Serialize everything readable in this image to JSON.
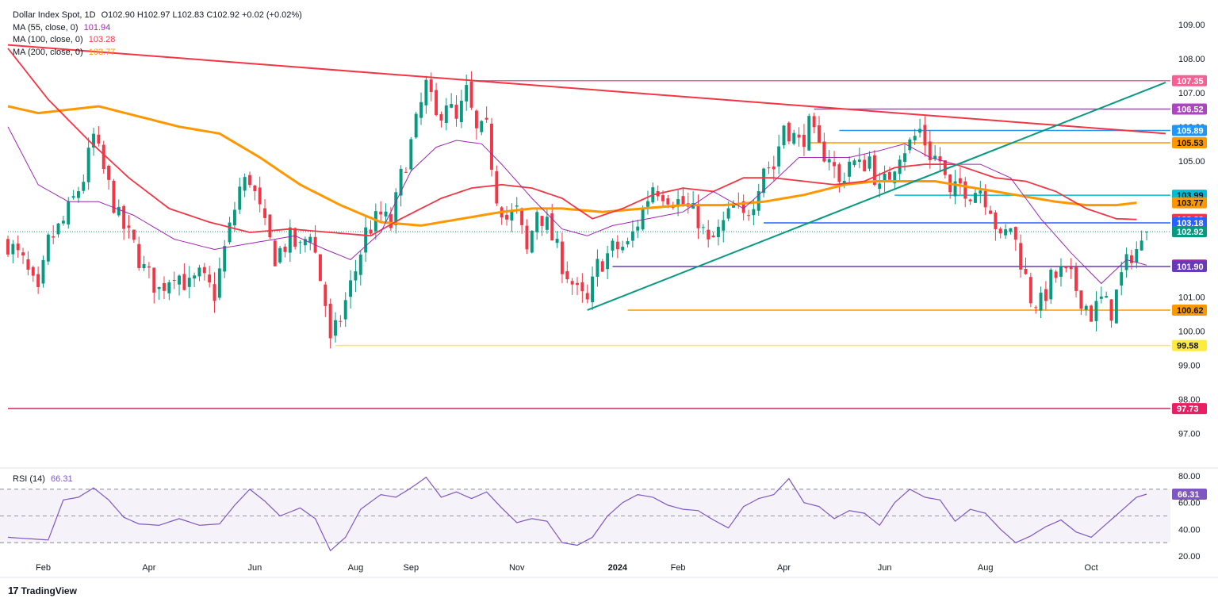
{
  "header": {
    "title": "Dollar Index Spot, 1D",
    "ohlc": "O102.90  H102.97  L102.83  C102.92  +0.02 (+0.02%)",
    "ma55": {
      "label": "MA (55, close, 0)",
      "value": "101.94",
      "color": "#9c27b0"
    },
    "ma100": {
      "label": "MA (100, close, 0)",
      "value": "103.28",
      "color": "#f23645"
    },
    "ma200": {
      "label": "MA (200, close, 0)",
      "value": "103.77",
      "color": "#ff9800"
    }
  },
  "rsi": {
    "label": "RSI (14)",
    "value": "66.31",
    "color": "#7e57c2"
  },
  "brand": {
    "logo": "17",
    "name": "TradingView"
  },
  "chart_data": {
    "type": "candlestick",
    "y_range": [
      96.5,
      109.3
    ],
    "y_ticks": [
      "109.00",
      "108.00",
      "107.00",
      "106.00",
      "105.00",
      "104.00",
      "103.00",
      "102.00",
      "101.00",
      "100.00",
      "99.00",
      "98.00",
      "97.00"
    ],
    "x_ticks": [
      "Feb",
      "Apr",
      "Jun",
      "Aug",
      "Sep",
      "Nov",
      "2024",
      "Feb",
      "Apr",
      "Jun",
      "Aug",
      "Oct"
    ],
    "rsi_ticks": [
      "80.00",
      "60.00",
      "40.00",
      "20.00"
    ],
    "rsi_range": [
      20,
      80
    ],
    "rsi_bands": [
      70,
      50,
      30
    ],
    "price_path": [
      [
        0,
        102.6
      ],
      [
        3,
        102.0
      ],
      [
        6,
        101.0
      ],
      [
        8,
        102.6
      ],
      [
        11,
        103.2
      ],
      [
        15,
        104.5
      ],
      [
        17,
        105.7
      ],
      [
        19,
        104.7
      ],
      [
        22,
        103.3
      ],
      [
        25,
        102.5
      ],
      [
        27,
        101.8
      ],
      [
        30,
        101.2
      ],
      [
        33,
        101.8
      ],
      [
        36,
        101.3
      ],
      [
        38,
        101.6
      ],
      [
        41,
        101.1
      ],
      [
        43,
        102.4
      ],
      [
        46,
        104.2
      ],
      [
        48,
        104.5
      ],
      [
        51,
        103.0
      ],
      [
        53,
        102.2
      ],
      [
        56,
        102.7
      ],
      [
        58,
        102.4
      ],
      [
        60,
        103.0
      ],
      [
        63,
        100.8
      ],
      [
        64,
        99.6
      ],
      [
        66,
        100.4
      ],
      [
        69,
        101.8
      ],
      [
        71,
        102.9
      ],
      [
        74,
        103.4
      ],
      [
        76,
        103.1
      ],
      [
        78,
        104.5
      ],
      [
        80,
        105.5
      ],
      [
        83,
        107.2
      ],
      [
        85,
        106.2
      ],
      [
        87,
        106.8
      ],
      [
        89,
        106.1
      ],
      [
        91,
        107.0
      ],
      [
        93,
        105.8
      ],
      [
        95,
        105.9
      ],
      [
        97,
        104.0
      ],
      [
        99,
        103.3
      ],
      [
        101,
        103.5
      ],
      [
        103,
        102.3
      ],
      [
        105,
        103.6
      ],
      [
        107,
        103.1
      ],
      [
        110,
        102.0
      ],
      [
        113,
        101.1
      ],
      [
        115,
        100.8
      ],
      [
        117,
        101.9
      ],
      [
        120,
        102.4
      ],
      [
        123,
        102.5
      ],
      [
        125,
        103.2
      ],
      [
        128,
        104.3
      ],
      [
        131,
        104.0
      ],
      [
        134,
        103.7
      ],
      [
        137,
        103.3
      ],
      [
        139,
        102.5
      ],
      [
        141,
        102.9
      ],
      [
        144,
        103.6
      ],
      [
        146,
        103.3
      ],
      [
        148,
        103.9
      ],
      [
        150,
        104.9
      ],
      [
        152,
        104.8
      ],
      [
        154,
        106.1
      ],
      [
        157,
        105.5
      ],
      [
        159,
        106.0
      ],
      [
        161,
        105.3
      ],
      [
        163,
        105.2
      ],
      [
        165,
        104.3
      ],
      [
        167,
        105.0
      ],
      [
        169,
        104.8
      ],
      [
        171,
        105.1
      ],
      [
        173,
        104.1
      ],
      [
        175,
        104.6
      ],
      [
        177,
        105.3
      ],
      [
        179,
        105.5
      ],
      [
        181,
        105.9
      ],
      [
        183,
        105.2
      ],
      [
        185,
        105.0
      ],
      [
        187,
        103.9
      ],
      [
        189,
        104.3
      ],
      [
        191,
        104.1
      ],
      [
        193,
        104.2
      ],
      [
        195,
        103.7
      ],
      [
        197,
        102.6
      ],
      [
        199,
        103.1
      ],
      [
        201,
        102.1
      ],
      [
        203,
        101.0
      ],
      [
        205,
        100.8
      ],
      [
        207,
        101.5
      ],
      [
        209,
        101.7
      ],
      [
        211,
        101.5
      ],
      [
        213,
        101.0
      ],
      [
        215,
        100.5
      ],
      [
        217,
        100.9
      ],
      [
        219,
        100.6
      ],
      [
        221,
        101.6
      ],
      [
        223,
        102.3
      ],
      [
        225,
        102.5
      ],
      [
        226,
        102.9
      ]
    ],
    "ma55_path": [
      [
        0,
        106.0
      ],
      [
        6,
        104.3
      ],
      [
        12,
        103.8
      ],
      [
        18,
        103.8
      ],
      [
        25,
        103.4
      ],
      [
        33,
        102.7
      ],
      [
        41,
        102.4
      ],
      [
        49,
        102.6
      ],
      [
        57,
        102.8
      ],
      [
        63,
        102.4
      ],
      [
        68,
        102.1
      ],
      [
        74,
        102.9
      ],
      [
        80,
        104.7
      ],
      [
        85,
        105.4
      ],
      [
        89,
        105.6
      ],
      [
        94,
        105.5
      ],
      [
        98,
        104.9
      ],
      [
        104,
        103.9
      ],
      [
        110,
        103.0
      ],
      [
        115,
        102.8
      ],
      [
        120,
        103.1
      ],
      [
        127,
        103.3
      ],
      [
        134,
        103.5
      ],
      [
        140,
        104.1
      ],
      [
        146,
        103.6
      ],
      [
        152,
        104.4
      ],
      [
        157,
        105.1
      ],
      [
        162,
        105.1
      ],
      [
        167,
        105.1
      ],
      [
        173,
        105.3
      ],
      [
        178,
        105.5
      ],
      [
        183,
        105.1
      ],
      [
        188,
        104.9
      ],
      [
        193,
        104.9
      ],
      [
        199,
        104.5
      ],
      [
        205,
        103.3
      ],
      [
        211,
        102.3
      ],
      [
        217,
        101.4
      ],
      [
        222,
        102.1
      ],
      [
        226,
        101.94
      ]
    ],
    "ma100_path": [
      [
        0,
        108.3
      ],
      [
        8,
        106.8
      ],
      [
        16,
        105.6
      ],
      [
        24,
        104.5
      ],
      [
        32,
        103.6
      ],
      [
        40,
        103.2
      ],
      [
        48,
        102.9
      ],
      [
        56,
        103.0
      ],
      [
        64,
        102.9
      ],
      [
        72,
        102.8
      ],
      [
        78,
        103.3
      ],
      [
        86,
        103.9
      ],
      [
        92,
        104.2
      ],
      [
        98,
        104.3
      ],
      [
        104,
        104.2
      ],
      [
        110,
        103.9
      ],
      [
        116,
        103.3
      ],
      [
        122,
        103.6
      ],
      [
        128,
        104.0
      ],
      [
        134,
        104.2
      ],
      [
        140,
        104.1
      ],
      [
        146,
        104.5
      ],
      [
        152,
        104.5
      ],
      [
        158,
        104.4
      ],
      [
        164,
        104.3
      ],
      [
        170,
        104.4
      ],
      [
        176,
        104.8
      ],
      [
        182,
        104.9
      ],
      [
        188,
        104.9
      ],
      [
        196,
        104.5
      ],
      [
        202,
        104.4
      ],
      [
        208,
        104.1
      ],
      [
        214,
        103.6
      ],
      [
        220,
        103.3
      ],
      [
        224,
        103.28
      ]
    ],
    "ma200_path": [
      [
        0,
        106.6
      ],
      [
        6,
        106.4
      ],
      [
        12,
        106.5
      ],
      [
        18,
        106.6
      ],
      [
        26,
        106.3
      ],
      [
        34,
        106.0
      ],
      [
        42,
        105.8
      ],
      [
        50,
        105.1
      ],
      [
        58,
        104.3
      ],
      [
        66,
        103.7
      ],
      [
        74,
        103.2
      ],
      [
        82,
        103.1
      ],
      [
        90,
        103.3
      ],
      [
        98,
        103.5
      ],
      [
        104,
        103.6
      ],
      [
        110,
        103.6
      ],
      [
        118,
        103.5
      ],
      [
        126,
        103.6
      ],
      [
        134,
        103.7
      ],
      [
        142,
        103.7
      ],
      [
        150,
        103.8
      ],
      [
        158,
        104.0
      ],
      [
        166,
        104.3
      ],
      [
        172,
        104.4
      ],
      [
        178,
        104.4
      ],
      [
        184,
        104.4
      ],
      [
        192,
        104.2
      ],
      [
        200,
        104.0
      ],
      [
        208,
        103.8
      ],
      [
        214,
        103.7
      ],
      [
        220,
        103.7
      ],
      [
        224,
        103.77
      ]
    ],
    "rsi_path": [
      [
        0,
        34
      ],
      [
        4,
        33
      ],
      [
        8,
        32
      ],
      [
        11,
        62
      ],
      [
        14,
        64
      ],
      [
        17,
        71
      ],
      [
        20,
        62
      ],
      [
        23,
        49
      ],
      [
        26,
        44
      ],
      [
        30,
        43
      ],
      [
        34,
        48
      ],
      [
        38,
        43
      ],
      [
        42,
        44
      ],
      [
        45,
        58
      ],
      [
        48,
        70
      ],
      [
        51,
        61
      ],
      [
        54,
        50
      ],
      [
        58,
        56
      ],
      [
        61,
        48
      ],
      [
        64,
        24
      ],
      [
        67,
        34
      ],
      [
        70,
        55
      ],
      [
        74,
        66
      ],
      [
        77,
        64
      ],
      [
        80,
        71
      ],
      [
        83,
        79
      ],
      [
        86,
        64
      ],
      [
        89,
        68
      ],
      [
        92,
        63
      ],
      [
        95,
        68
      ],
      [
        98,
        56
      ],
      [
        101,
        45
      ],
      [
        104,
        48
      ],
      [
        107,
        46
      ],
      [
        110,
        30
      ],
      [
        113,
        28
      ],
      [
        116,
        34
      ],
      [
        119,
        50
      ],
      [
        122,
        60
      ],
      [
        125,
        66
      ],
      [
        128,
        64
      ],
      [
        131,
        58
      ],
      [
        134,
        55
      ],
      [
        137,
        54
      ],
      [
        140,
        47
      ],
      [
        143,
        41
      ],
      [
        146,
        57
      ],
      [
        149,
        63
      ],
      [
        152,
        66
      ],
      [
        155,
        78
      ],
      [
        158,
        60
      ],
      [
        161,
        57
      ],
      [
        164,
        48
      ],
      [
        167,
        54
      ],
      [
        170,
        52
      ],
      [
        173,
        43
      ],
      [
        176,
        60
      ],
      [
        179,
        70
      ],
      [
        182,
        64
      ],
      [
        185,
        62
      ],
      [
        188,
        46
      ],
      [
        191,
        55
      ],
      [
        194,
        52
      ],
      [
        197,
        40
      ],
      [
        200,
        30
      ],
      [
        203,
        35
      ],
      [
        206,
        42
      ],
      [
        209,
        47
      ],
      [
        212,
        38
      ],
      [
        215,
        34
      ],
      [
        218,
        44
      ],
      [
        221,
        54
      ],
      [
        224,
        64
      ],
      [
        226,
        66.31
      ]
    ],
    "trendlines": [
      {
        "name": "red-down-trend",
        "color": "#f23645",
        "from": [
          0,
          108.4
        ],
        "to": [
          226,
          105.8
        ]
      },
      {
        "name": "green-up-trend",
        "color": "#089981",
        "from": [
          115,
          100.62
        ],
        "to": [
          226,
          107.3
        ]
      }
    ],
    "levels": [
      {
        "value": 107.35,
        "label": "107.35",
        "color": "#f06292",
        "from_i": 92
      },
      {
        "value": 106.52,
        "label": "106.52",
        "color": "#ab47bc",
        "from_i": 160
      },
      {
        "value": 105.89,
        "label": "105.89",
        "color": "#2196f3",
        "from_i": 165
      },
      {
        "value": 105.53,
        "label": "105.53",
        "color": "#ff9800",
        "from_i": 159
      },
      {
        "value": 103.99,
        "label": "103.99",
        "color": "#00bcd4",
        "from_i": 176
      },
      {
        "value": 103.18,
        "label": "103.18",
        "color": "#2962ff",
        "from_i": 150
      },
      {
        "value": 101.9,
        "label": "101.90",
        "color": "#673ab7",
        "from_i": 120
      },
      {
        "value": 100.62,
        "label": "100.62",
        "color": "#ff9800",
        "from_i": 123
      },
      {
        "value": 99.58,
        "label": "99.58",
        "color": "#ffeb3b",
        "from_i": 65
      },
      {
        "value": 97.73,
        "label": "97.73",
        "color": "#e91e63",
        "from_i": 0
      }
    ],
    "price_tags": [
      {
        "value": 107.35,
        "label": "107.35",
        "bg": "#f06292",
        "fg": "#ffffff"
      },
      {
        "value": 106.52,
        "label": "106.52",
        "bg": "#ab47bc",
        "fg": "#ffffff"
      },
      {
        "value": 105.89,
        "label": "105.89",
        "bg": "#2196f3",
        "fg": "#ffffff"
      },
      {
        "value": 105.53,
        "label": "105.53",
        "bg": "#ff9800",
        "fg": "#131722"
      },
      {
        "value": 103.99,
        "label": "103.99",
        "bg": "#00bcd4",
        "fg": "#131722"
      },
      {
        "value": 103.77,
        "label": "103.77",
        "bg": "#ff9800",
        "fg": "#131722"
      },
      {
        "value": 103.28,
        "label": "103.28",
        "bg": "#f23645",
        "fg": "#ffffff"
      },
      {
        "value": 103.18,
        "label": "103.18",
        "bg": "#2962ff",
        "fg": "#ffffff"
      },
      {
        "value": 102.92,
        "label": "102.92",
        "bg": "#089981",
        "fg": "#ffffff"
      },
      {
        "value": 101.94,
        "label": "101.94",
        "bg": "#9c27b0",
        "fg": "#ffffff"
      },
      {
        "value": 101.9,
        "label": "101.90",
        "bg": "#673ab7",
        "fg": "#ffffff"
      },
      {
        "value": 100.62,
        "label": "100.62",
        "bg": "#ff9800",
        "fg": "#131722"
      },
      {
        "value": 99.58,
        "label": "99.58",
        "bg": "#ffeb3b",
        "fg": "#131722"
      },
      {
        "value": 97.73,
        "label": "97.73",
        "bg": "#e91e63",
        "fg": "#ffffff"
      }
    ],
    "rsi_tag": {
      "label": "66.31",
      "bg": "#7e57c2",
      "fg": "#ffffff",
      "value": 66.31
    },
    "last_close": 102.92,
    "up_color": "#089981",
    "down_color": "#f23645",
    "grid": false
  }
}
